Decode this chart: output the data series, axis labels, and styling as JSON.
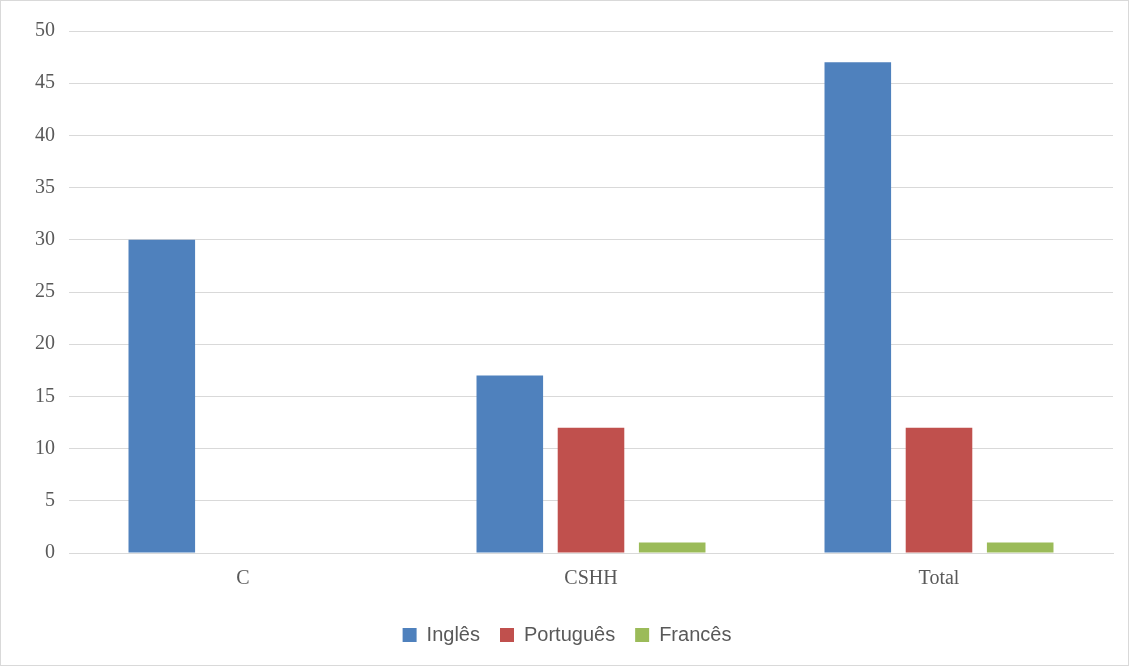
{
  "chart_data": {
    "type": "bar",
    "categories": [
      "C",
      "CSHH",
      "Total"
    ],
    "series": [
      {
        "name": "Inglês",
        "color": "#4f81bd",
        "values": [
          30,
          17,
          47
        ]
      },
      {
        "name": "Português",
        "color": "#c0504d",
        "values": [
          0,
          12,
          12
        ]
      },
      {
        "name": "Francês",
        "color": "#9bbb59",
        "values": [
          0,
          1,
          1
        ]
      }
    ],
    "ylim": [
      0,
      50
    ],
    "yticks": [
      0,
      5,
      10,
      15,
      20,
      25,
      30,
      35,
      40,
      45,
      50
    ],
    "grid": "y",
    "legend": "bottom"
  }
}
